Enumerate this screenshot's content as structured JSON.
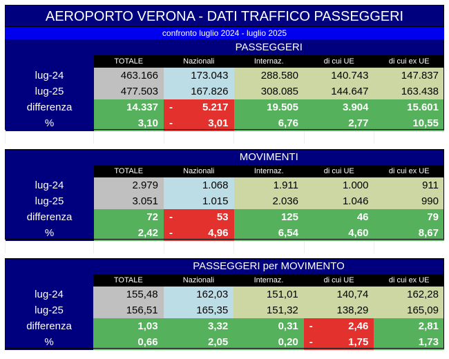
{
  "title": "AEROPORTO VERONA - DATI TRAFFICO PASSEGGERI",
  "subtitle": "confronto luglio 2024 - luglio 2025",
  "columns": [
    "TOTALE",
    "Nazionali",
    "Internaz.",
    "di cui UE",
    "di cui ex UE"
  ],
  "sections": [
    {
      "title": "PASSEGGERI",
      "rows": [
        {
          "label": "lug-24",
          "values": [
            "463.166",
            "173.043",
            "288.580",
            "140.743",
            "147.837"
          ]
        },
        {
          "label": "lug-25",
          "values": [
            "477.503",
            "167.826",
            "308.085",
            "144.647",
            "163.438"
          ]
        },
        {
          "label": "differenza",
          "values": [
            "14.337",
            "5.217",
            "19.505",
            "3.904",
            "15.601"
          ]
        },
        {
          "label": "%",
          "values": [
            "3,10",
            "3,01",
            "6,76",
            "2,77",
            "10,55"
          ]
        }
      ],
      "negative": [
        false,
        true,
        false,
        false,
        false
      ]
    },
    {
      "title": "MOVIMENTI",
      "rows": [
        {
          "label": "lug-24",
          "values": [
            "2.979",
            "1.068",
            "1.911",
            "1.000",
            "911"
          ]
        },
        {
          "label": "lug-25",
          "values": [
            "3.051",
            "1.015",
            "2.036",
            "1.046",
            "990"
          ]
        },
        {
          "label": "differenza",
          "values": [
            "72",
            "53",
            "125",
            "46",
            "79"
          ]
        },
        {
          "label": "%",
          "values": [
            "2,42",
            "4,96",
            "6,54",
            "4,60",
            "8,67"
          ]
        }
      ],
      "negative": [
        false,
        true,
        false,
        false,
        false
      ]
    },
    {
      "title": "PASSEGGERI per MOVIMENTO",
      "rows": [
        {
          "label": "lug-24",
          "values": [
            "155,48",
            "162,03",
            "151,01",
            "140,74",
            "162,28"
          ]
        },
        {
          "label": "lug-25",
          "values": [
            "156,51",
            "165,35",
            "151,32",
            "138,29",
            "165,09"
          ]
        },
        {
          "label": "differenza",
          "values": [
            "1,03",
            "3,32",
            "0,31",
            "2,46",
            "2,81"
          ]
        },
        {
          "label": "%",
          "values": [
            "0,66",
            "2,05",
            "0,20",
            "1,75",
            "1,73"
          ]
        }
      ],
      "negative": [
        false,
        false,
        false,
        true,
        false
      ]
    }
  ],
  "minus_sign": "-",
  "colors": {
    "navy": "#00007f",
    "blue": "#0000ee",
    "gray": "#c0c0c0",
    "light_blue": "#bcdde6",
    "khaki": "#ccd7a4",
    "green": "#56b15c",
    "red": "#e3312d"
  }
}
